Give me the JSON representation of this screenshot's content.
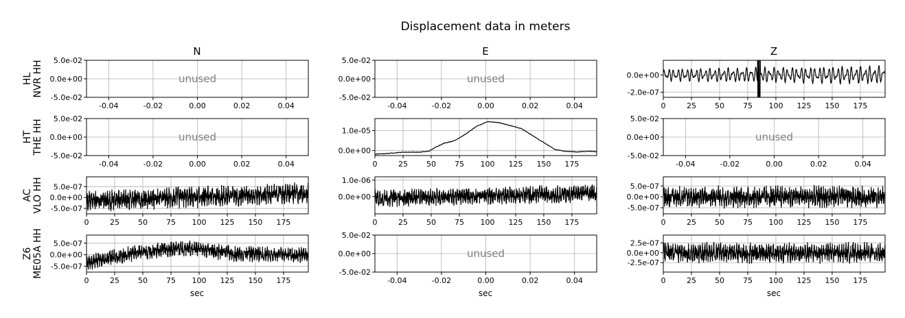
{
  "chart_data": {
    "type": "line",
    "title": "Displacement data in meters",
    "columns": [
      "N",
      "E",
      "Z"
    ],
    "rows": [
      {
        "network": "HL",
        "channel": "NVR HH"
      },
      {
        "network": "HT",
        "channel": "THE HH"
      },
      {
        "network": "AC",
        "channel": "VLO HH"
      },
      {
        "network": "Z6",
        "channel": "ME05A HH"
      }
    ],
    "xlabel": "sec",
    "unused_label": "unused",
    "empty_panel": {
      "xlim": [
        -0.05,
        0.05
      ],
      "xticks": [
        "-0.04",
        "-0.02",
        "0.00",
        "0.02",
        "0.04"
      ],
      "ylim": [
        -0.05,
        0.05
      ],
      "yticks": [
        "5.0e-02",
        "0.0e+00",
        "-5.0e-02"
      ]
    },
    "time_xlim": [
      0,
      197
    ],
    "time_xticks": [
      "0",
      "25",
      "50",
      "75",
      "100",
      "125",
      "150",
      "175"
    ],
    "panels": [
      {
        "row": 0,
        "col": 0,
        "unused": true
      },
      {
        "row": 0,
        "col": 1,
        "unused": true
      },
      {
        "row": 0,
        "col": 2,
        "unused": false,
        "ylim": [
          -2.6e-07,
          1.7e-07
        ],
        "yticks": [
          {
            "value": 0,
            "label": "0.0e+00"
          },
          {
            "value": -2e-07,
            "label": "-2.0e-07"
          }
        ],
        "signal": "oscillation",
        "amplitude": 1e-07,
        "spike_at": 85
      },
      {
        "row": 1,
        "col": 0,
        "unused": true
      },
      {
        "row": 1,
        "col": 1,
        "unused": false,
        "ylim": [
          -2.5e-06,
          1.6e-05
        ],
        "yticks": [
          {
            "value": 1e-05,
            "label": "1.0e-05"
          },
          {
            "value": 0,
            "label": "0.0e+00"
          }
        ],
        "signal": "envelope",
        "envelope": [
          [
            0,
            -1.8e-06
          ],
          [
            10,
            -1.5e-06
          ],
          [
            25,
            -8e-07
          ],
          [
            40,
            -8e-07
          ],
          [
            48,
            -3e-07
          ],
          [
            55,
            2e-06
          ],
          [
            62,
            3.8e-06
          ],
          [
            70,
            4.8e-06
          ],
          [
            80,
            8e-06
          ],
          [
            90,
            1.2e-05
          ],
          [
            100,
            1.45e-05
          ],
          [
            110,
            1.4e-05
          ],
          [
            120,
            1.25e-05
          ],
          [
            130,
            1.1e-05
          ],
          [
            140,
            7.5e-06
          ],
          [
            150,
            4e-06
          ],
          [
            160,
            5e-07
          ],
          [
            170,
            -4e-07
          ],
          [
            180,
            -7e-07
          ],
          [
            190,
            -3e-07
          ],
          [
            197,
            -6e-07
          ]
        ]
      },
      {
        "row": 1,
        "col": 2,
        "unused": true
      },
      {
        "row": 2,
        "col": 0,
        "unused": false,
        "ylim": [
          -7.5e-07,
          9.5e-07
        ],
        "yticks": [
          {
            "value": 5e-07,
            "label": "5.0e-07"
          },
          {
            "value": 0,
            "label": "0.0e+00"
          },
          {
            "value": -5e-07,
            "label": "-5.0e-07"
          }
        ],
        "signal": "noise",
        "amplitude": 3.2e-07,
        "drift": [
          -1.5e-07,
          2e-07
        ]
      },
      {
        "row": 2,
        "col": 1,
        "unused": false,
        "ylim": [
          -1.05e-06,
          1.2e-06
        ],
        "yticks": [
          {
            "value": 1e-06,
            "label": "1.0e-06"
          },
          {
            "value": 0,
            "label": "0.0e+00"
          }
        ],
        "signal": "noise",
        "amplitude": 3.5e-07,
        "drift": [
          -1e-07,
          2e-07
        ]
      },
      {
        "row": 2,
        "col": 2,
        "unused": false,
        "ylim": [
          -7.8e-07,
          9.2e-07
        ],
        "yticks": [
          {
            "value": 5e-07,
            "label": "5.0e-07"
          },
          {
            "value": 0,
            "label": "0.0e+00"
          },
          {
            "value": -5e-07,
            "label": "-5.0e-07"
          }
        ],
        "signal": "noise",
        "amplitude": 3.3e-07,
        "drift": [
          0,
          0
        ]
      },
      {
        "row": 3,
        "col": 0,
        "unused": false,
        "ylim": [
          -7.5e-07,
          8.5e-07
        ],
        "yticks": [
          {
            "value": 5e-07,
            "label": "5.0e-07"
          },
          {
            "value": 0,
            "label": "0.0e+00"
          },
          {
            "value": -5e-07,
            "label": "-5.0e-07"
          }
        ],
        "signal": "noise",
        "amplitude": 2.2e-07,
        "drift_curve": [
          [
            0,
            -3.5e-07
          ],
          [
            45,
            1e-07
          ],
          [
            90,
            3e-07
          ],
          [
            130,
            5e-08
          ],
          [
            197,
            0
          ]
        ]
      },
      {
        "row": 3,
        "col": 1,
        "unused": true
      },
      {
        "row": 3,
        "col": 2,
        "unused": false,
        "ylim": [
          -4.9e-07,
          4.5e-07
        ],
        "yticks": [
          {
            "value": 2.5e-07,
            "label": "2.5e-07"
          },
          {
            "value": 0,
            "label": "0.0e+00"
          },
          {
            "value": -2.5e-07,
            "label": "-2.5e-07"
          }
        ],
        "signal": "noise",
        "amplitude": 1.7e-07,
        "drift": [
          0,
          0
        ]
      }
    ]
  }
}
